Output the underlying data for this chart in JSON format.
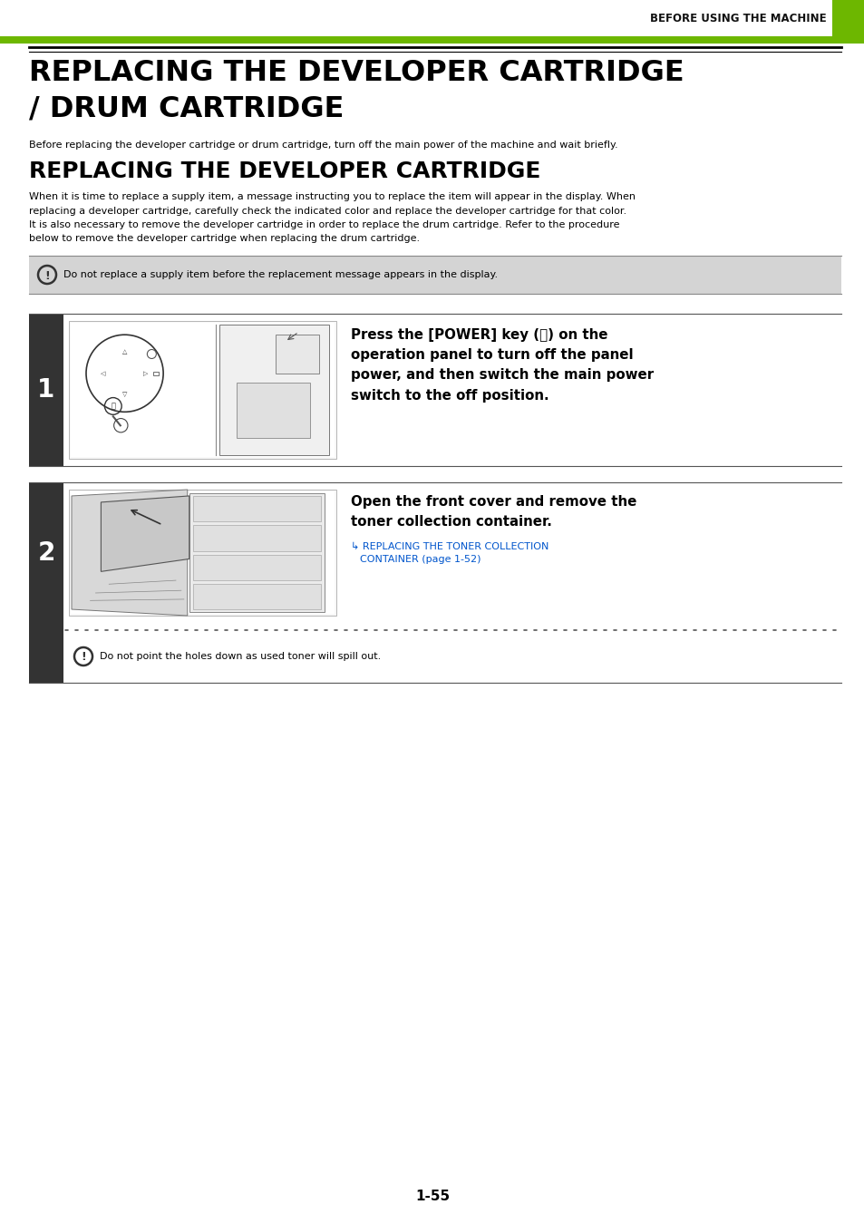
{
  "page_bg": "#ffffff",
  "green_bar_color": "#6db700",
  "header_text": "BEFORE USING THE MACHINE",
  "header_text_color": "#111111",
  "main_title_line1": "REPLACING THE DEVELOPER CARTRIDGE",
  "main_title_line2": "/ DRUM CARTRIDGE",
  "subtitle_text": "Before replacing the developer cartridge or drum cartridge, turn off the main power of the machine and wait briefly.",
  "section_title": "REPLACING THE DEVELOPER CARTRIDGE",
  "body_lines": [
    "When it is time to replace a supply item, a message instructing you to replace the item will appear in the display. When",
    "replacing a developer cartridge, carefully check the indicated color and replace the developer cartridge for that color.",
    "It is also necessary to remove the developer cartridge in order to replace the drum cartridge. Refer to the procedure",
    "below to remove the developer cartridge when replacing the drum cartridge."
  ],
  "caution_bg": "#d4d4d4",
  "caution_border": "#888888",
  "caution1_text": "Do not replace a supply item before the replacement message appears in the display.",
  "step_num_bg": "#333333",
  "step_num_color": "#ffffff",
  "step1_text": "Press the [POWER] key (ⓧ) on the\noperation panel to turn off the panel\npower, and then switch the main power\nswitch to the off position.",
  "step2_bold_line1": "Open the front cover and remove the",
  "step2_bold_line2": "toner collection container.",
  "step2_link_line1": "↳ REPLACING THE TONER COLLECTION",
  "step2_link_line2": "    CONTAINER (page 1-52)",
  "step2_link_color": "#0055cc",
  "caution2_text": "Do not point the holes down as used toner will spill out.",
  "page_number": "1-55"
}
